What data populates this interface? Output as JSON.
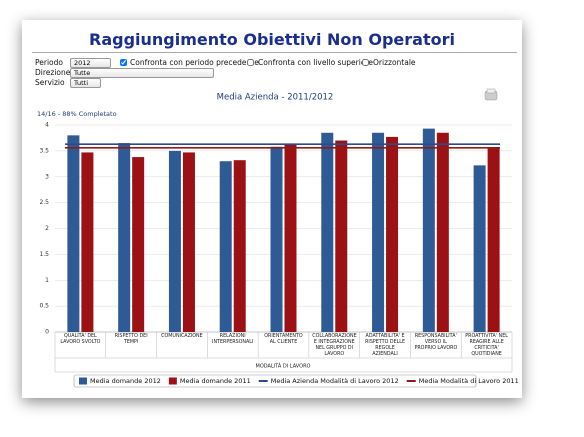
{
  "header": {
    "title": "Raggiungimento Obiettivi Non Operatori"
  },
  "filters": {
    "period": {
      "label": "Periodo",
      "value": "2012"
    },
    "options": [
      {
        "label": "Confronta con periodo precedente",
        "checked": true
      },
      {
        "label": "Confronta con livello superiore",
        "checked": false
      },
      {
        "label": "Orizzontale",
        "checked": false
      }
    ],
    "direzione": {
      "label": "Direzione",
      "value": "Tutte"
    },
    "servizio": {
      "label": "Servizio",
      "value": "Tutti"
    }
  },
  "chart_data": {
    "type": "bar",
    "title": "Media Azienda - 2011/2012",
    "subtitle": "14/16 - 88% Completato",
    "x_label": "MODALITÀ DI LAVORO",
    "categories": [
      "QUALITA' DEL LAVORO SVOLTO",
      "RISPETTO DEI TEMPI",
      "COMUNICAZIONE",
      "RELAZIONI INTERPERSONALI",
      "ORIENTAMENTO AL CLIENTE",
      "COLLABORAZIONE E INTEGRAZIONE NEL GRUPPO DI LAVORO",
      "ADATTABILITA' E RISPETTO DELLE REGOLE AZIENDALI",
      "RESPONSABILITA' VERSO IL PROPRIO LAVORO",
      "PROATTIVITA' NEL REAGIRE ALLE CRITICITA' QUOTIDIANE"
    ],
    "series": [
      {
        "name": "Media domande 2012",
        "color": "#2e5b95",
        "values": [
          3.8,
          3.65,
          3.5,
          3.3,
          3.58,
          3.85,
          3.85,
          3.93,
          3.22
        ]
      },
      {
        "name": "Media domande 2011",
        "color": "#9c1214",
        "values": [
          3.47,
          3.38,
          3.47,
          3.32,
          3.63,
          3.7,
          3.77,
          3.85,
          3.55
        ]
      }
    ],
    "reference_lines": [
      {
        "name": "Media Azienda Modalità di Lavoro 2012",
        "color": "#2b4c8c",
        "value": 3.63
      },
      {
        "name": "Media Modalità di Lavoro 2011",
        "color": "#8e1a1c",
        "value": 3.56
      }
    ],
    "ylim": [
      0,
      4
    ],
    "yticks": [
      0,
      0.5,
      1,
      1.5,
      2,
      2.5,
      3,
      3.5,
      4
    ],
    "grid": true
  }
}
